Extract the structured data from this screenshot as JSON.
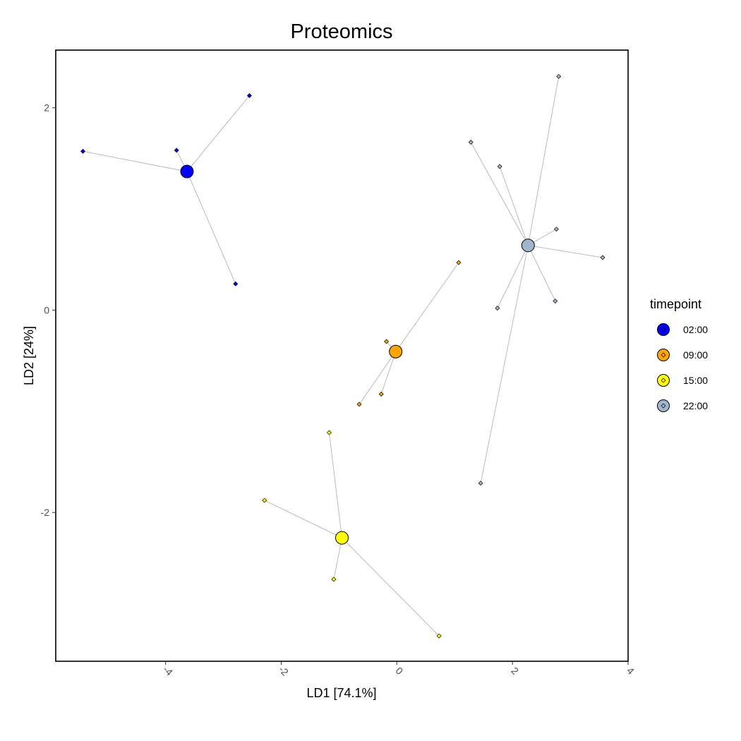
{
  "chart_data": {
    "type": "scatter",
    "title": "Proteomics",
    "xlabel": "LD1 [74.1%]",
    "ylabel": "LD2 [24%]",
    "xlim": [
      -5.9,
      4
    ],
    "ylim": [
      -3.47,
      2.57
    ],
    "x_ticks": [
      -4,
      -2,
      0,
      2,
      4
    ],
    "y_ticks": [
      -2,
      0,
      2
    ],
    "x_tick_labels": [
      "-4",
      "-2",
      "0",
      "2",
      "4"
    ],
    "y_tick_labels": [
      "-2",
      "0",
      "2"
    ],
    "grid": false,
    "legend": {
      "title": "timepoint",
      "placement": "right"
    },
    "series": [
      {
        "name": "02:00",
        "color": "#0000ff",
        "centroid": {
          "x": -3.63,
          "y": 1.37
        },
        "points": [
          {
            "x": -2.55,
            "y": 2.12
          },
          {
            "x": -3.81,
            "y": 1.58
          },
          {
            "x": -5.43,
            "y": 1.57
          },
          {
            "x": -2.79,
            "y": 0.26
          }
        ]
      },
      {
        "name": "09:00",
        "color": "#ffa500",
        "centroid": {
          "x": -0.02,
          "y": -0.41
        },
        "points": [
          {
            "x": 1.07,
            "y": 0.47
          },
          {
            "x": -0.18,
            "y": -0.31
          },
          {
            "x": -0.27,
            "y": -0.83
          },
          {
            "x": -0.65,
            "y": -0.93
          }
        ]
      },
      {
        "name": "15:00",
        "color": "#ffff00",
        "centroid": {
          "x": -0.95,
          "y": -2.25
        },
        "points": [
          {
            "x": -1.17,
            "y": -1.21
          },
          {
            "x": -2.29,
            "y": -1.88
          },
          {
            "x": -1.09,
            "y": -2.66
          },
          {
            "x": 0.73,
            "y": -3.22
          }
        ]
      },
      {
        "name": "22:00",
        "color": "#9fb6cd",
        "centroid": {
          "x": 2.27,
          "y": 0.64
        },
        "points": [
          {
            "x": 2.8,
            "y": 2.31
          },
          {
            "x": 1.28,
            "y": 1.66
          },
          {
            "x": 1.78,
            "y": 1.42
          },
          {
            "x": 2.76,
            "y": 0.8
          },
          {
            "x": 3.56,
            "y": 0.52
          },
          {
            "x": 2.74,
            "y": 0.09
          },
          {
            "x": 1.74,
            "y": 0.02
          },
          {
            "x": 1.45,
            "y": -1.71
          }
        ]
      }
    ]
  }
}
